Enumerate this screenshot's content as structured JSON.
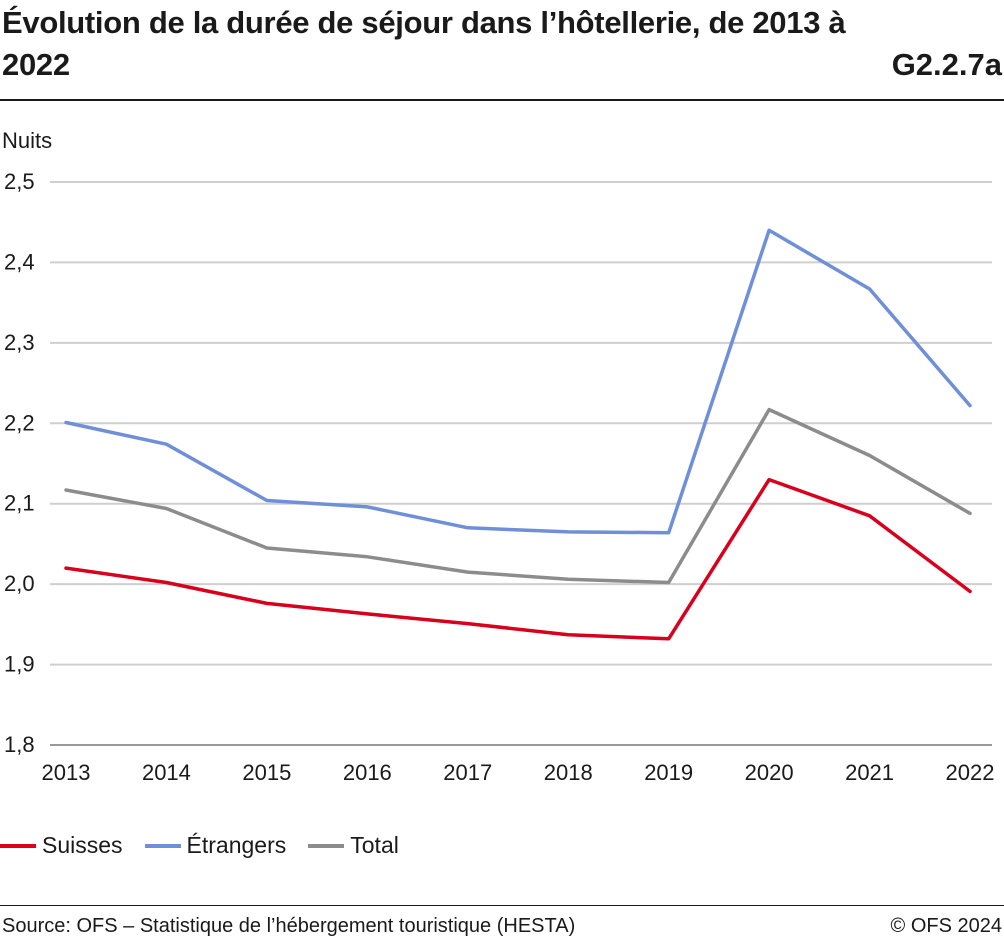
{
  "header": {
    "title": "Évolution de la durée de séjour dans l’hôtellerie, de 2013 à 2022",
    "code": "G2.2.7a"
  },
  "footer": {
    "source": "Source: OFS – Statistique de l’hébergement touristique (HESTA)",
    "copyright": "© OFS 2024"
  },
  "chart_data": {
    "type": "line",
    "title": "Évolution de la durée de séjour dans l’hôtellerie, de 2013 à 2022",
    "ylabel": "Nuits",
    "xlabel": "",
    "ylim": [
      1.8,
      2.5
    ],
    "yticks": [
      "1,8",
      "1,9",
      "2,0",
      "2,1",
      "2,2",
      "2,3",
      "2,4",
      "2,5"
    ],
    "x": [
      "2013",
      "2014",
      "2015",
      "2016",
      "2017",
      "2018",
      "2019",
      "2020",
      "2021",
      "2022"
    ],
    "grid": true,
    "legend_position": "bottom-left",
    "series": [
      {
        "name": "Suisses",
        "color": "#d8001c",
        "values": [
          2.02,
          2.002,
          1.976,
          1.963,
          1.951,
          1.937,
          1.932,
          2.13,
          2.085,
          1.991
        ]
      },
      {
        "name": "Étrangers",
        "color": "#6f8fd8",
        "values": [
          2.201,
          2.174,
          2.104,
          2.096,
          2.07,
          2.065,
          2.064,
          2.44,
          2.367,
          2.222
        ]
      },
      {
        "name": "Total",
        "color": "#8c8c8c",
        "values": [
          2.117,
          2.094,
          2.045,
          2.034,
          2.015,
          2.006,
          2.002,
          2.217,
          2.16,
          2.088
        ]
      }
    ]
  }
}
